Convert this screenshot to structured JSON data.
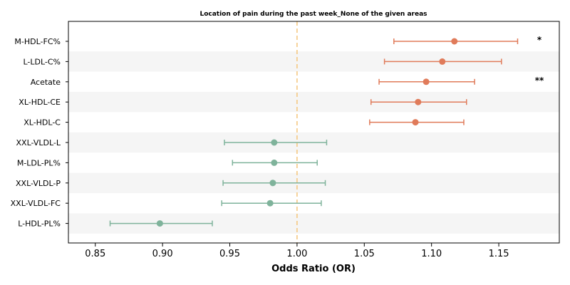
{
  "chart_data": {
    "type": "forest",
    "title": "Location of pain during the past week_None of the given areas",
    "xlabel": "Odds Ratio (OR)",
    "xlim": [
      0.83,
      1.195
    ],
    "xticks": [
      "0.85",
      "0.90",
      "0.95",
      "1.00",
      "1.05",
      "1.10",
      "1.15"
    ],
    "reference_line": 1.0,
    "reference_color": "#f5c57a",
    "colors": {
      "positive": "#e07b5a",
      "negative": "#7fb39b",
      "stripe": "#f5f5f5"
    },
    "rows": [
      {
        "label": "M-HDL-FC%",
        "or": 1.117,
        "lo": 1.072,
        "hi": 1.164,
        "sig": "*"
      },
      {
        "label": "L-LDL-C%",
        "or": 1.108,
        "lo": 1.065,
        "hi": 1.152,
        "sig": ""
      },
      {
        "label": "Acetate",
        "or": 1.096,
        "lo": 1.061,
        "hi": 1.132,
        "sig": "**"
      },
      {
        "label": "XL-HDL-CE",
        "or": 1.09,
        "lo": 1.055,
        "hi": 1.126,
        "sig": ""
      },
      {
        "label": "XL-HDL-C",
        "or": 1.088,
        "lo": 1.054,
        "hi": 1.124,
        "sig": ""
      },
      {
        "label": "XXL-VLDL-L",
        "or": 0.983,
        "lo": 0.946,
        "hi": 1.022,
        "sig": ""
      },
      {
        "label": "M-LDL-PL%",
        "or": 0.983,
        "lo": 0.952,
        "hi": 1.015,
        "sig": ""
      },
      {
        "label": "XXL-VLDL-P",
        "or": 0.982,
        "lo": 0.945,
        "hi": 1.021,
        "sig": ""
      },
      {
        "label": "XXL-VLDL-FC",
        "or": 0.98,
        "lo": 0.944,
        "hi": 1.018,
        "sig": ""
      },
      {
        "label": "L-HDL-PL%",
        "or": 0.898,
        "lo": 0.861,
        "hi": 0.937,
        "sig": ""
      }
    ]
  }
}
